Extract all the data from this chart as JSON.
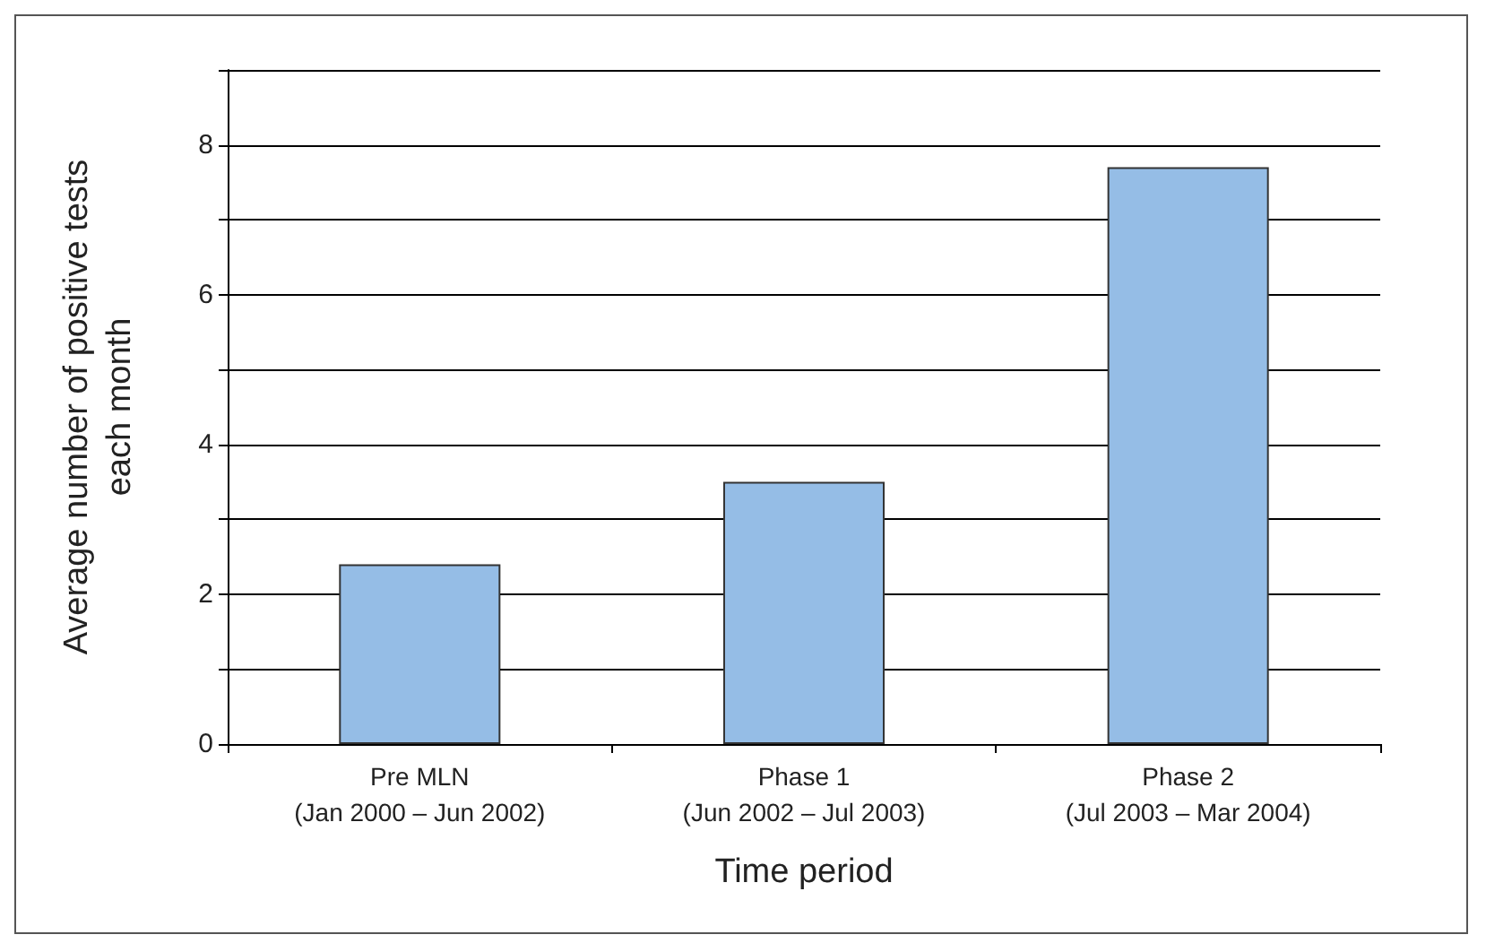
{
  "chart_data": {
    "type": "bar",
    "xlabel": "Time period",
    "ylabel": "Average number of positive tests\neach month",
    "categories": [
      "Pre MLN\n(Jan 2000 – Jun 2002)",
      "Phase 1\n(Jun 2002 – Jul 2003)",
      "Phase 2\n(Jul 2003 – Mar 2004)"
    ],
    "values": [
      2.4,
      3.5,
      7.7
    ],
    "color": "#95bde6",
    "ylim": [
      0,
      9
    ],
    "yticks": [
      0,
      {
        "value": 1,
        "label": null
      },
      2,
      {
        "value": 3,
        "label": null
      },
      4,
      {
        "value": 5,
        "label": null
      },
      6,
      {
        "value": 7,
        "label": null
      },
      8,
      {
        "value": 9,
        "label": null
      }
    ],
    "grid": "y"
  }
}
